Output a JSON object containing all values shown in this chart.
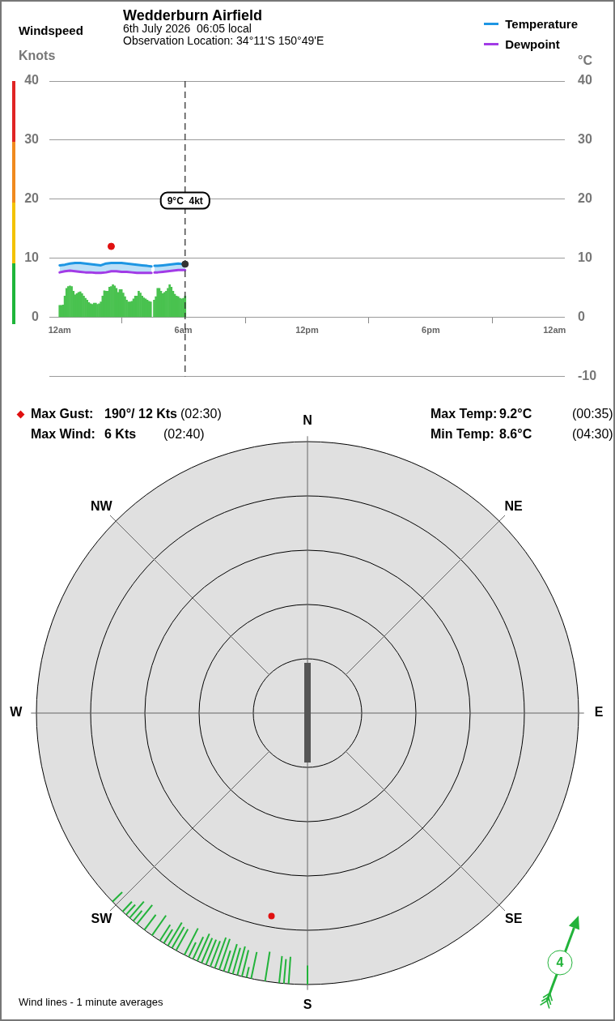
{
  "chart_data": [
    {
      "type": "bar",
      "title": "Wedderburn Airfield",
      "subtitle": "6th July 2026  06:05 local\nObservation Location: 34°11'S 150°49'E",
      "ylabel": "Knots",
      "y2label": "°C",
      "annotations": [
        "Windspeed"
      ],
      "xlim": [
        "2026-07-05T23:30",
        "2026-07-07T00:30"
      ],
      "xticks": [
        {
          "value": "2026-07-06T00:00",
          "label": "12am"
        },
        {
          "value": "2026-07-06T06:00",
          "label": "6am"
        },
        {
          "value": "2026-07-06T12:00",
          "label": "12pm"
        },
        {
          "value": "2026-07-06T18:00",
          "label": "6pm"
        },
        {
          "value": "2026-07-07T00:00",
          "label": "12am"
        }
      ],
      "ylim": [
        -10,
        40
      ],
      "yticks": [
        0,
        10,
        20,
        30,
        40
      ],
      "y2lim": [
        -10,
        40
      ],
      "y2ticks": [
        -10,
        0,
        10,
        20,
        30,
        40
      ],
      "grid": "y",
      "legend": "top right",
      "series": [
        {
          "type": "bar",
          "color": "#49c24f",
          "x": [
            "2026-07-06T00:00",
            "2026-07-06T00:05",
            "2026-07-06T00:10",
            "2026-07-06T00:15",
            "2026-07-06T00:20",
            "2026-07-06T00:25",
            "2026-07-06T00:30",
            "2026-07-06T00:35",
            "2026-07-06T00:40",
            "2026-07-06T00:45",
            "2026-07-06T00:50",
            "2026-07-06T00:55",
            "2026-07-06T01:00",
            "2026-07-06T01:05",
            "2026-07-06T01:10",
            "2026-07-06T01:15",
            "2026-07-06T01:20",
            "2026-07-06T01:25",
            "2026-07-06T01:30",
            "2026-07-06T01:35",
            "2026-07-06T01:40",
            "2026-07-06T01:45",
            "2026-07-06T01:50",
            "2026-07-06T01:55",
            "2026-07-06T02:00",
            "2026-07-06T02:05",
            "2026-07-06T02:10",
            "2026-07-06T02:15",
            "2026-07-06T02:20",
            "2026-07-06T02:25",
            "2026-07-06T02:30",
            "2026-07-06T02:35",
            "2026-07-06T02:40",
            "2026-07-06T02:45",
            "2026-07-06T02:50",
            "2026-07-06T02:55",
            "2026-07-06T03:00",
            "2026-07-06T03:05",
            "2026-07-06T03:10",
            "2026-07-06T03:15",
            "2026-07-06T03:20",
            "2026-07-06T03:25",
            "2026-07-06T03:30",
            "2026-07-06T03:35",
            "2026-07-06T03:40",
            "2026-07-06T03:45",
            "2026-07-06T03:50",
            "2026-07-06T03:55",
            "2026-07-06T04:00",
            "2026-07-06T04:05",
            "2026-07-06T04:10",
            "2026-07-06T04:15",
            "2026-07-06T04:20",
            "2026-07-06T04:25",
            "2026-07-06T04:30",
            "2026-07-06T04:35",
            "2026-07-06T04:40",
            "2026-07-06T04:45",
            "2026-07-06T04:50",
            "2026-07-06T04:55",
            "2026-07-06T05:00",
            "2026-07-06T05:05",
            "2026-07-06T05:10",
            "2026-07-06T05:15",
            "2026-07-06T05:20",
            "2026-07-06T05:25",
            "2026-07-06T05:30",
            "2026-07-06T05:35",
            "2026-07-06T05:40",
            "2026-07-06T05:45",
            "2026-07-06T05:50",
            "2026-07-06T05:55",
            "2026-07-06T06:00",
            "2026-07-06T06:05"
          ],
          "values": [
            2.0,
            2.0,
            2.1,
            3.6,
            4.9,
            5.2,
            5.3,
            5.2,
            4.4,
            3.8,
            4.0,
            4.2,
            4.3,
            4.0,
            3.6,
            3.2,
            2.9,
            2.5,
            2.3,
            2.2,
            2.4,
            2.4,
            2.2,
            2.3,
            2.6,
            3.6,
            4.5,
            4.4,
            4.4,
            5.1,
            5.2,
            5.5,
            5.3,
            4.9,
            4.2,
            4.7,
            4.7,
            4.1,
            3.5,
            2.9,
            2.6,
            2.6,
            2.7,
            3.1,
            3.6,
            3.6,
            4.4,
            4.1,
            3.6,
            3.3,
            3.1,
            2.9,
            2.7,
            2.6,
            null,
            2.9,
            3.5,
            4.9,
            4.9,
            4.4,
            4.0,
            4.2,
            4.4,
            4.9,
            5.5,
            5.1,
            4.4,
            3.9,
            3.6,
            3.5,
            3.2,
            3.1,
            3.2,
            3.6
          ]
        },
        {
          "type": "scatter",
          "color": "#e01010",
          "x": [
            "2026-07-06T02:30"
          ],
          "values": [
            12
          ]
        },
        {
          "name": "Temperature",
          "type": "line",
          "axis": "y2",
          "color": "#1e96e3",
          "x": [
            "2026-07-06T00:00",
            "2026-07-06T00:15",
            "2026-07-06T00:30",
            "2026-07-06T00:45",
            "2026-07-06T01:00",
            "2026-07-06T01:15",
            "2026-07-06T01:30",
            "2026-07-06T01:45",
            "2026-07-06T02:00",
            "2026-07-06T02:15",
            "2026-07-06T02:30",
            "2026-07-06T02:45",
            "2026-07-06T03:00",
            "2026-07-06T03:15",
            "2026-07-06T03:30",
            "2026-07-06T03:45",
            "2026-07-06T04:00",
            "2026-07-06T04:15",
            "2026-07-06T04:27",
            "2026-07-06T04:30",
            "2026-07-06T04:36",
            "2026-07-06T04:45",
            "2026-07-06T05:00",
            "2026-07-06T05:15",
            "2026-07-06T05:30",
            "2026-07-06T05:45",
            "2026-07-06T06:00",
            "2026-07-06T06:05"
          ],
          "values": [
            8.8,
            8.9,
            9.1,
            9.2,
            9.2,
            9.1,
            9.0,
            8.9,
            8.8,
            9.1,
            9.2,
            9.2,
            9.2,
            9.1,
            9.0,
            8.9,
            8.8,
            8.7,
            8.6,
            null,
            8.7,
            8.7,
            8.8,
            8.9,
            9.0,
            9.1,
            9.0,
            9.0
          ],
          "lower": [
            7.6,
            7.8,
            7.9,
            7.8,
            7.7,
            7.6,
            7.6,
            7.5,
            7.5,
            7.6,
            7.8,
            7.8,
            7.7,
            7.7,
            7.6,
            7.5,
            7.5,
            7.5,
            7.5,
            null,
            7.6,
            7.6,
            7.7,
            7.8,
            7.9,
            8.0,
            8.0,
            8.0
          ],
          "upper": [
            8.8,
            8.9,
            9.1,
            9.2,
            9.2,
            9.1,
            9.0,
            8.9,
            8.8,
            9.1,
            9.2,
            9.2,
            9.2,
            9.1,
            9.0,
            8.9,
            8.8,
            8.7,
            8.6,
            null,
            8.7,
            8.7,
            8.8,
            8.9,
            9.0,
            9.1,
            9.0,
            9.0
          ]
        },
        {
          "name": "Dewpoint",
          "type": "line",
          "axis": "y2",
          "color": "#a23be6",
          "x": [
            "2026-07-06T00:00",
            "2026-07-06T00:15",
            "2026-07-06T00:30",
            "2026-07-06T00:45",
            "2026-07-06T01:00",
            "2026-07-06T01:15",
            "2026-07-06T01:30",
            "2026-07-06T01:45",
            "2026-07-06T02:00",
            "2026-07-06T02:15",
            "2026-07-06T02:30",
            "2026-07-06T02:45",
            "2026-07-06T03:00",
            "2026-07-06T03:15",
            "2026-07-06T03:30",
            "2026-07-06T03:45",
            "2026-07-06T04:00",
            "2026-07-06T04:15",
            "2026-07-06T04:27",
            "2026-07-06T04:30",
            "2026-07-06T04:36",
            "2026-07-06T04:45",
            "2026-07-06T05:00",
            "2026-07-06T05:15",
            "2026-07-06T05:30",
            "2026-07-06T05:45",
            "2026-07-06T06:00",
            "2026-07-06T06:05"
          ],
          "values": [
            7.6,
            7.8,
            7.9,
            7.8,
            7.7,
            7.6,
            7.6,
            7.5,
            7.5,
            7.6,
            7.8,
            7.8,
            7.7,
            7.7,
            7.6,
            7.5,
            7.5,
            7.5,
            7.5,
            null,
            7.6,
            7.6,
            7.7,
            7.8,
            7.9,
            8.0,
            8.0,
            8.0
          ]
        },
        {
          "type": "scatter",
          "axis": "y2",
          "color": "#333333",
          "x": [
            "2026-07-06T06:05"
          ],
          "values": [
            9.0
          ]
        }
      ],
      "ref_lines": [
        {
          "axis": "x",
          "value": "2026-07-06T06:05",
          "label": "9°C  4kt",
          "color": "#333333",
          "line_style": "dashed"
        }
      ]
    },
    {
      "type": "other",
      "annotations": [
        "Max Gust:",
        "190°/ 12 Kts",
        "(02:30)",
        "Max Wind:",
        "6 Kts",
        "(02:40)",
        "Max Temp:",
        "9.2°C",
        "(00:35)",
        "Min Temp:",
        "8.6°C",
        "(04:30)"
      ]
    },
    {
      "type": "other",
      "categories": [
        "N",
        "NE",
        "E",
        "SE",
        "S",
        "SW",
        "W",
        "NW"
      ],
      "annotations": [
        "Wind lines - 1 minute averages",
        "4"
      ]
    }
  ]
}
